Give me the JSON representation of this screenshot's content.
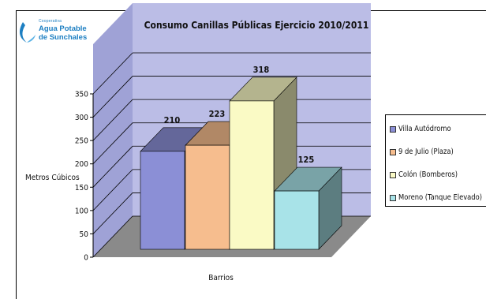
{
  "logo": {
    "line1": "Cooperativa",
    "line2": "Agua Potable",
    "line3": "de Sunchales"
  },
  "chart_data": {
    "type": "bar",
    "title": "Consumo Canillas Públicas Ejercicio 2010/2011",
    "xlabel": "Barrios",
    "ylabel": "Metros Cúbicos",
    "ylim": [
      0,
      350
    ],
    "yticks": [
      0,
      50,
      100,
      150,
      200,
      250,
      300,
      350
    ],
    "grid": true,
    "legend": "right",
    "series": [
      {
        "name": "Villa Autódromo",
        "value": 210,
        "color": "#8b8fd6"
      },
      {
        "name": "9 de Julio (Plaza)",
        "value": 223,
        "color": "#f6bd8e"
      },
      {
        "name": "Colón (Bomberos)",
        "value": 318,
        "color": "#fafac5"
      },
      {
        "name": "Moreno (Tanque Elevado)",
        "value": 125,
        "color": "#a8e3e8"
      }
    ]
  }
}
